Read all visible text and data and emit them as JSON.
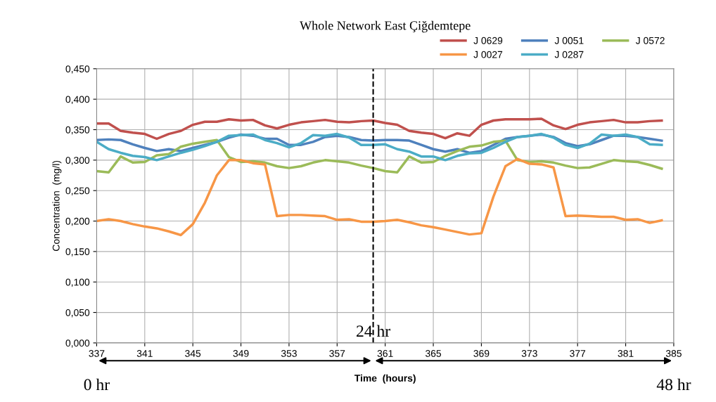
{
  "chart_data": {
    "type": "line",
    "title": "Whole Network East Çiğdemtepe",
    "xlabel": "Time  (hours)",
    "ylabel": "Concentration  (mg/l)",
    "x": [
      337,
      338,
      339,
      340,
      341,
      342,
      343,
      344,
      345,
      346,
      347,
      348,
      349,
      350,
      351,
      352,
      353,
      354,
      355,
      356,
      357,
      358,
      359,
      360,
      361,
      362,
      363,
      364,
      365,
      366,
      367,
      368,
      369,
      370,
      371,
      372,
      373,
      374,
      375,
      376,
      377,
      378,
      379,
      380,
      381,
      382,
      383,
      384
    ],
    "series": [
      {
        "name": "J 0629",
        "color": "#c0504d",
        "values": [
          0.36,
          0.36,
          0.348,
          0.345,
          0.343,
          0.335,
          0.343,
          0.348,
          0.358,
          0.363,
          0.363,
          0.367,
          0.365,
          0.366,
          0.357,
          0.352,
          0.358,
          0.362,
          0.364,
          0.366,
          0.363,
          0.362,
          0.364,
          0.365,
          0.361,
          0.358,
          0.348,
          0.345,
          0.343,
          0.336,
          0.344,
          0.34,
          0.358,
          0.365,
          0.367,
          0.367,
          0.367,
          0.368,
          0.357,
          0.351,
          0.358,
          0.362,
          0.364,
          0.366,
          0.362,
          0.362,
          0.364,
          0.365
        ]
      },
      {
        "name": "J 0051",
        "color": "#4f81bd",
        "values": [
          0.333,
          0.334,
          0.333,
          0.326,
          0.32,
          0.315,
          0.318,
          0.315,
          0.32,
          0.325,
          0.33,
          0.337,
          0.342,
          0.34,
          0.335,
          0.335,
          0.325,
          0.325,
          0.33,
          0.338,
          0.34,
          0.338,
          0.333,
          0.332,
          0.333,
          0.333,
          0.332,
          0.325,
          0.318,
          0.314,
          0.318,
          0.312,
          0.315,
          0.325,
          0.335,
          0.338,
          0.34,
          0.342,
          0.338,
          0.328,
          0.323,
          0.326,
          0.333,
          0.34,
          0.34,
          0.338,
          0.335,
          0.332
        ]
      },
      {
        "name": "J 0572",
        "color": "#9bbb59",
        "values": [
          0.282,
          0.28,
          0.306,
          0.296,
          0.297,
          0.308,
          0.31,
          0.322,
          0.327,
          0.33,
          0.333,
          0.305,
          0.297,
          0.298,
          0.296,
          0.29,
          0.287,
          0.29,
          0.296,
          0.3,
          0.298,
          0.296,
          0.291,
          0.287,
          0.282,
          0.28,
          0.306,
          0.296,
          0.297,
          0.307,
          0.315,
          0.322,
          0.324,
          0.33,
          0.332,
          0.3,
          0.297,
          0.298,
          0.296,
          0.291,
          0.287,
          0.288,
          0.294,
          0.3,
          0.298,
          0.297,
          0.292,
          0.286
        ]
      },
      {
        "name": "J 0027",
        "color": "#f79646",
        "values": [
          0.2,
          0.203,
          0.2,
          0.195,
          0.191,
          0.188,
          0.183,
          0.177,
          0.195,
          0.23,
          0.275,
          0.3,
          0.3,
          0.295,
          0.293,
          0.208,
          0.21,
          0.21,
          0.209,
          0.208,
          0.202,
          0.203,
          0.199,
          0.199,
          0.2,
          0.202,
          0.198,
          0.193,
          0.19,
          0.186,
          0.182,
          0.178,
          0.18,
          0.24,
          0.29,
          0.302,
          0.294,
          0.293,
          0.288,
          0.208,
          0.209,
          0.208,
          0.207,
          0.207,
          0.202,
          0.203,
          0.197,
          0.201
        ]
      },
      {
        "name": "J 0287",
        "color": "#4bacc6",
        "values": [
          0.33,
          0.318,
          0.312,
          0.307,
          0.305,
          0.3,
          0.306,
          0.312,
          0.317,
          0.323,
          0.33,
          0.34,
          0.341,
          0.342,
          0.333,
          0.328,
          0.321,
          0.328,
          0.341,
          0.34,
          0.343,
          0.337,
          0.325,
          0.325,
          0.326,
          0.318,
          0.314,
          0.306,
          0.306,
          0.3,
          0.307,
          0.311,
          0.312,
          0.32,
          0.33,
          0.338,
          0.34,
          0.343,
          0.337,
          0.325,
          0.32,
          0.327,
          0.342,
          0.34,
          0.342,
          0.338,
          0.326,
          0.325
        ]
      }
    ],
    "xlim": [
      337,
      385
    ],
    "xticks": [
      337,
      341,
      345,
      349,
      353,
      357,
      361,
      365,
      369,
      373,
      377,
      381,
      385
    ],
    "ylim": [
      0,
      0.45
    ],
    "yticks": [
      {
        "value": 0,
        "label": "0,000"
      },
      {
        "value": 0.05,
        "label": "0,050"
      },
      {
        "value": 0.1,
        "label": "0,100"
      },
      {
        "value": 0.15,
        "label": "0,150"
      },
      {
        "value": 0.2,
        "label": "0,200"
      },
      {
        "value": 0.25,
        "label": "0,250"
      },
      {
        "value": 0.3,
        "label": "0,300"
      },
      {
        "value": 0.35,
        "label": "0,350"
      },
      {
        "value": 0.4,
        "label": "0,400"
      },
      {
        "value": 0.45,
        "label": "0,450"
      }
    ],
    "ref_lines": [
      {
        "axis": "x",
        "value": 360,
        "label": "24 hr",
        "color": "#000000",
        "line_style": "dashed"
      }
    ],
    "annotations": [
      "0 hr",
      "48 hr"
    ],
    "grid": true,
    "legend": "top right",
    "marker": "none",
    "line_style": "solid"
  }
}
